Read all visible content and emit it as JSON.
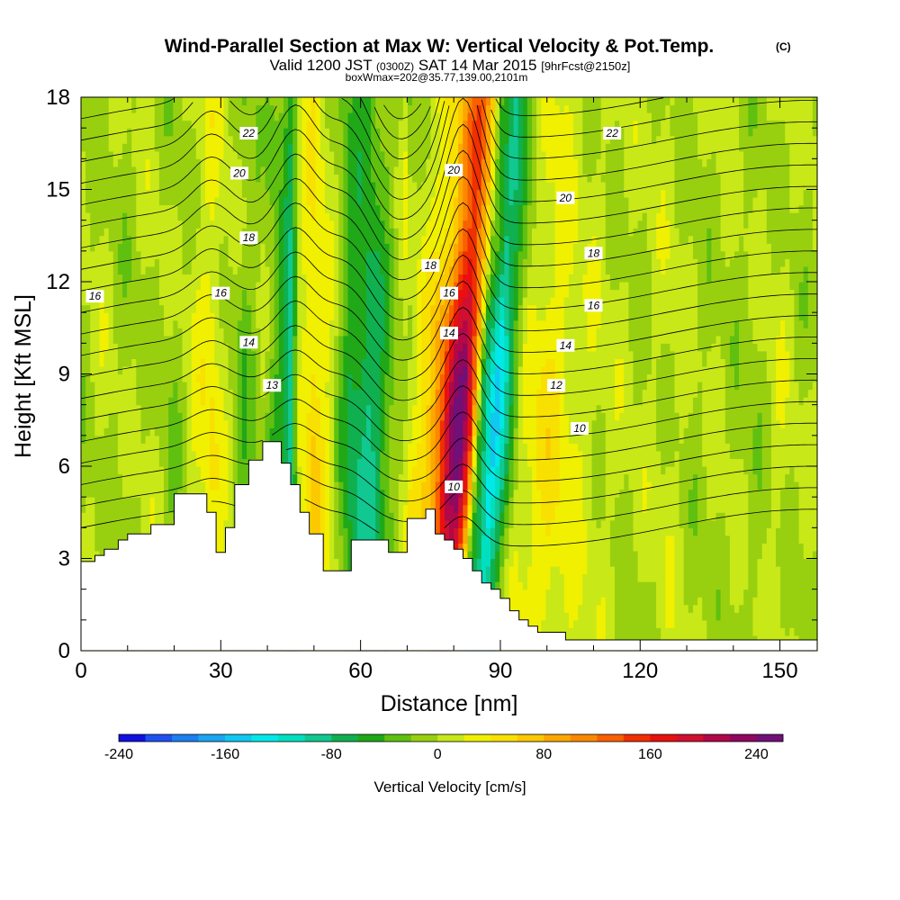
{
  "header": {
    "title": "Wind-Parallel Section at Max W: Vertical Velocity & Pot.Temp.",
    "title_mark": "(C)",
    "valid_prefix": "Valid 1200 JST",
    "valid_utc": "(0300Z)",
    "valid_date": "SAT 14 Mar 2015",
    "forecast_info": "[9hrFcst@2150z]",
    "box_info": "boxWmax=202@35.77,139.00,2101m"
  },
  "chart_data": {
    "type": "heatmap",
    "xlabel": "Distance [nm]",
    "ylabel": "Height [Kft MSL]",
    "xlim": [
      0,
      158
    ],
    "ylim": [
      0,
      18
    ],
    "x_ticks": [
      0,
      30,
      60,
      90,
      120,
      150
    ],
    "y_ticks": [
      0,
      3,
      6,
      9,
      12,
      15,
      18
    ],
    "colorbar": {
      "label": "Vertical Velocity [cm/s]",
      "range": [
        -240,
        260
      ],
      "tick_values": [
        -240,
        -160,
        -80,
        0,
        80,
        160,
        240
      ],
      "tick_labels": [
        "-240",
        "-160",
        "-80",
        "0",
        "80",
        "160",
        "240"
      ],
      "colors": [
        "#1010e0",
        "#2050f0",
        "#1e7ff0",
        "#1aa6f0",
        "#10c8f0",
        "#00e8e8",
        "#00e0c0",
        "#10c890",
        "#10b050",
        "#20a818",
        "#60c010",
        "#98d010",
        "#c8e818",
        "#f0f000",
        "#f8e000",
        "#fcc800",
        "#fca800",
        "#fc8800",
        "#f86000",
        "#f03000",
        "#e81010",
        "#d01030",
        "#b00848",
        "#900860",
        "#701078"
      ]
    },
    "w_field": {
      "description_hidden": true,
      "columns_nm": [
        0,
        5,
        10,
        15,
        20,
        25,
        28,
        31,
        35,
        39,
        43,
        45,
        47,
        50,
        54,
        58,
        62,
        66,
        70,
        74,
        77,
        80,
        82,
        84,
        86,
        89,
        92,
        95,
        99,
        103,
        108,
        114,
        120,
        126,
        132,
        138,
        144,
        150,
        155,
        158
      ],
      "profile_w": [
        -5,
        5,
        -10,
        5,
        -15,
        20,
        40,
        10,
        -30,
        -5,
        -60,
        -110,
        20,
        60,
        10,
        -70,
        -90,
        -40,
        20,
        50,
        120,
        220,
        250,
        150,
        -60,
        -150,
        -60,
        15,
        45,
        35,
        15,
        5,
        0,
        10,
        -5,
        0,
        -10,
        10,
        -5,
        0
      ]
    },
    "terrain_kft": {
      "x": [
        0,
        3,
        5,
        8,
        10,
        15,
        20,
        26,
        27,
        28,
        29,
        30,
        31,
        33,
        36,
        39,
        42,
        43,
        45,
        47,
        49,
        52,
        55,
        58,
        60,
        62,
        64,
        66,
        70,
        74,
        76,
        78,
        80,
        82,
        84,
        86,
        88,
        90,
        92,
        94,
        96,
        98,
        100,
        104,
        110,
        120,
        130,
        140,
        150,
        158
      ],
      "h": [
        2.9,
        3.1,
        3.3,
        3.6,
        3.8,
        4.1,
        5.1,
        5.1,
        4.5,
        4.5,
        3.2,
        3.2,
        4.0,
        5.4,
        6.2,
        6.8,
        6.8,
        6.1,
        5.4,
        4.5,
        3.8,
        2.6,
        2.6,
        3.6,
        3.6,
        3.6,
        3.6,
        3.2,
        4.3,
        4.6,
        3.8,
        3.6,
        3.3,
        3.0,
        2.6,
        2.2,
        2.0,
        1.7,
        1.3,
        1.0,
        0.8,
        0.6,
        0.6,
        0.35,
        0.35,
        0.35,
        0.35,
        0.35,
        0.35,
        0.35
      ]
    },
    "theta_contours": {
      "levels": [
        10,
        12,
        13,
        14,
        16,
        18,
        20,
        22
      ],
      "labels": [
        "10",
        "12",
        "13",
        "14",
        "16",
        "18",
        "20",
        "22"
      ]
    }
  }
}
